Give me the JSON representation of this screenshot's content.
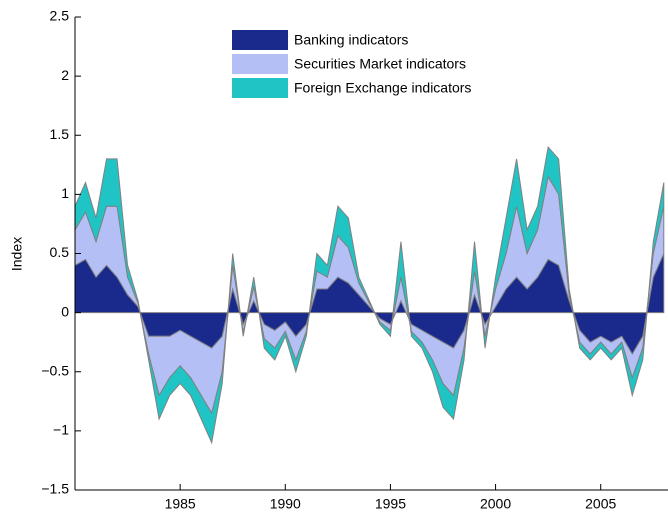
{
  "chart_data": {
    "type": "stacked_area",
    "y_label": "Index",
    "x": [
      1980.0,
      1980.5,
      1981.0,
      1981.5,
      1982.0,
      1982.5,
      1983.0,
      1983.5,
      1984.0,
      1984.5,
      1985.0,
      1985.5,
      1986.0,
      1986.5,
      1987.0,
      1987.5,
      1988.0,
      1988.5,
      1989.0,
      1989.5,
      1990.0,
      1990.5,
      1991.0,
      1991.5,
      1992.0,
      1992.5,
      1993.0,
      1993.5,
      1994.0,
      1994.5,
      1995.0,
      1995.5,
      1996.0,
      1996.5,
      1997.0,
      1997.5,
      1998.0,
      1998.5,
      1999.0,
      1999.5,
      2000.0,
      2000.5,
      2001.0,
      2001.5,
      2002.0,
      2002.5,
      2003.0,
      2003.5,
      2004.0,
      2004.5,
      2005.0,
      2005.5,
      2006.0,
      2006.5,
      2007.0,
      2007.5,
      2008.0
    ],
    "series": [
      {
        "name": "Banking indicators",
        "color": "#1a2a8c",
        "values": [
          0.4,
          0.45,
          0.3,
          0.4,
          0.3,
          0.15,
          0.05,
          -0.2,
          -0.2,
          -0.2,
          -0.15,
          -0.2,
          -0.25,
          -0.3,
          -0.2,
          0.2,
          -0.1,
          0.1,
          -0.1,
          -0.15,
          -0.08,
          -0.2,
          -0.1,
          0.2,
          0.2,
          0.3,
          0.25,
          0.15,
          0.05,
          -0.05,
          -0.1,
          0.1,
          -0.1,
          -0.15,
          -0.2,
          -0.25,
          -0.3,
          -0.15,
          0.15,
          -0.1,
          0.05,
          0.2,
          0.3,
          0.2,
          0.3,
          0.45,
          0.4,
          0.1,
          -0.15,
          -0.25,
          -0.2,
          -0.25,
          -0.2,
          -0.35,
          -0.2,
          0.3,
          0.5
        ]
      },
      {
        "name": "Securities Market indicators",
        "color": "#b4c0f5",
        "values": [
          0.3,
          0.4,
          0.3,
          0.5,
          0.6,
          0.15,
          0.03,
          -0.15,
          -0.5,
          -0.35,
          -0.3,
          -0.35,
          -0.45,
          -0.55,
          -0.3,
          0.2,
          -0.07,
          0.12,
          -0.12,
          -0.15,
          -0.08,
          -0.2,
          -0.06,
          0.15,
          0.1,
          0.35,
          0.3,
          0.1,
          0.03,
          -0.03,
          -0.05,
          0.2,
          -0.06,
          -0.1,
          -0.2,
          -0.35,
          -0.4,
          -0.15,
          0.2,
          -0.1,
          0.15,
          0.3,
          0.6,
          0.3,
          0.4,
          0.7,
          0.6,
          0.05,
          -0.1,
          -0.1,
          -0.05,
          -0.1,
          -0.05,
          -0.2,
          -0.1,
          0.2,
          0.4
        ]
      },
      {
        "name": "Foreign Exchange indicators",
        "color": "#20c4c4",
        "values": [
          0.2,
          0.25,
          0.2,
          0.4,
          0.4,
          0.1,
          0.02,
          -0.05,
          -0.2,
          -0.15,
          -0.15,
          -0.15,
          -0.2,
          -0.25,
          -0.1,
          0.1,
          -0.03,
          0.08,
          -0.08,
          -0.1,
          -0.04,
          -0.1,
          -0.04,
          0.15,
          0.1,
          0.25,
          0.25,
          0.05,
          0.02,
          -0.02,
          -0.05,
          0.3,
          -0.04,
          -0.05,
          -0.1,
          -0.2,
          -0.2,
          -0.1,
          0.25,
          -0.1,
          0.1,
          0.3,
          0.4,
          0.2,
          0.2,
          0.25,
          0.3,
          0.05,
          -0.05,
          -0.05,
          -0.05,
          -0.05,
          -0.05,
          -0.15,
          -0.1,
          0.1,
          0.2
        ]
      }
    ],
    "xlim": [
      1980,
      2008.2
    ],
    "xticks": [
      1985,
      1990,
      1995,
      2000,
      2005
    ],
    "ylim": [
      -1.5,
      2.5
    ],
    "yticks": [
      {
        "value": -1.5,
        "label": "−1.5"
      },
      {
        "value": -1,
        "label": "−1"
      },
      {
        "value": -0.5,
        "label": "−0.5"
      },
      0,
      0.5,
      1,
      1.5,
      2,
      2.5
    ],
    "legend": "top"
  }
}
